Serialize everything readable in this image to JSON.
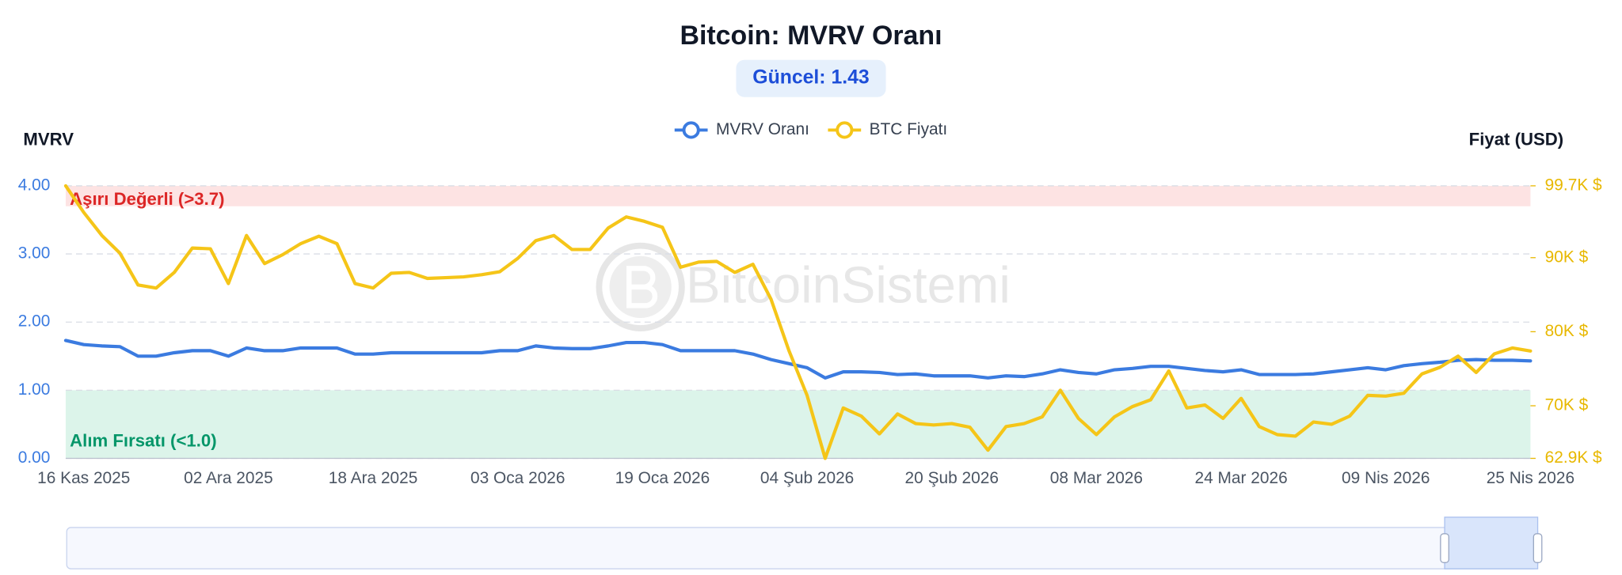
{
  "chart_data": {
    "type": "line",
    "title": "Bitcoin: MVRV Oranı",
    "subtitle": "Güncel: 1.43",
    "watermark": "BitcoinSistemi",
    "y_label": "MVRV",
    "y2_label": "Fiyat (USD)",
    "categories": [
      null,
      "16 Kas 2025",
      null,
      null,
      null,
      null,
      null,
      null,
      null,
      "02 Ara 2025",
      null,
      null,
      null,
      null,
      null,
      null,
      null,
      "18 Ara 2025",
      null,
      null,
      null,
      null,
      null,
      null,
      null,
      "03 Oca 2026",
      null,
      null,
      null,
      null,
      null,
      null,
      null,
      "19 Oca 2026",
      null,
      null,
      null,
      null,
      null,
      null,
      null,
      "04 Şub 2026",
      null,
      null,
      null,
      null,
      null,
      null,
      null,
      "20 Şub 2026",
      null,
      null,
      null,
      null,
      null,
      null,
      null,
      "08 Mar 2026",
      null,
      null,
      null,
      null,
      null,
      null,
      null,
      "24 Mar 2026",
      null,
      null,
      null,
      null,
      null,
      null,
      null,
      "09 Nis 2026",
      null,
      null,
      null,
      null,
      null,
      null,
      null,
      "25 Nis 2026"
    ],
    "series": [
      {
        "name": "MVRV Oranı",
        "color": "#3b7be0",
        "axis": "y",
        "values": [
          1.73,
          1.67,
          1.65,
          1.64,
          1.5,
          1.5,
          1.55,
          1.58,
          1.58,
          1.5,
          1.62,
          1.58,
          1.58,
          1.62,
          1.62,
          1.62,
          1.53,
          1.53,
          1.55,
          1.55,
          1.55,
          1.55,
          1.55,
          1.55,
          1.58,
          1.58,
          1.65,
          1.62,
          1.61,
          1.61,
          1.65,
          1.7,
          1.7,
          1.67,
          1.58,
          1.58,
          1.58,
          1.58,
          1.53,
          1.45,
          1.39,
          1.33,
          1.18,
          1.27,
          1.27,
          1.26,
          1.23,
          1.24,
          1.21,
          1.21,
          1.21,
          1.18,
          1.21,
          1.2,
          1.24,
          1.3,
          1.26,
          1.24,
          1.3,
          1.32,
          1.35,
          1.35,
          1.32,
          1.29,
          1.27,
          1.3,
          1.23,
          1.23,
          1.23,
          1.24,
          1.27,
          1.3,
          1.33,
          1.3,
          1.36,
          1.39,
          1.41,
          1.44,
          1.45,
          1.44,
          1.44,
          1.43
        ]
      },
      {
        "name": "BTC Fiyatı",
        "color": "#f5c518",
        "axis": "y2",
        "values": [
          99700,
          96100,
          93000,
          90600,
          86300,
          85900,
          88000,
          91300,
          91200,
          86500,
          93000,
          89200,
          90400,
          91900,
          92900,
          91900,
          86500,
          85900,
          87900,
          88000,
          87200,
          87300,
          87400,
          87700,
          88100,
          89900,
          92300,
          93000,
          91100,
          91100,
          94000,
          95500,
          94900,
          94100,
          88700,
          89400,
          89500,
          88000,
          89100,
          84400,
          77400,
          71400,
          62900,
          69700,
          68600,
          66200,
          68900,
          67600,
          67400,
          67600,
          67100,
          64000,
          67200,
          67600,
          68500,
          72100,
          68300,
          66100,
          68500,
          69900,
          70800,
          74700,
          69700,
          70100,
          68300,
          71000,
          67200,
          66100,
          65900,
          67800,
          67500,
          68600,
          71400,
          71300,
          71700,
          74300,
          75200,
          76700,
          74500,
          77000,
          77800,
          77400
        ]
      }
    ],
    "ylim": [
      0,
      4
    ],
    "yticks": [
      {
        "value": 0,
        "label": "0.00"
      },
      {
        "value": 1,
        "label": "1.00"
      },
      {
        "value": 2,
        "label": "2.00"
      },
      {
        "value": 3,
        "label": "3.00"
      },
      {
        "value": 4,
        "label": "4.00"
      }
    ],
    "y_tick_color": "#3b7be0",
    "y2lim": [
      62900,
      99700
    ],
    "y2ticks": [
      {
        "value": 62900,
        "label": "62.9K $"
      },
      {
        "value": 70000,
        "label": "70K $"
      },
      {
        "value": 80000,
        "label": "80K $"
      },
      {
        "value": 90000,
        "label": "90K $"
      },
      {
        "value": 99700,
        "label": "99.7K $"
      }
    ],
    "y2_tick_color": "#e8b800",
    "grid": true,
    "legend": "top",
    "zones": [
      {
        "label": "Aşırı Değerli (>3.7)",
        "from": 3.7,
        "to": 4,
        "color": "#fde3e3",
        "text_color": "#dc2626"
      },
      {
        "label": "Alım Fırsatı (<1.0)",
        "from": 0,
        "to": 1,
        "color": "#dcf4ea",
        "text_color": "#059669"
      }
    ]
  }
}
